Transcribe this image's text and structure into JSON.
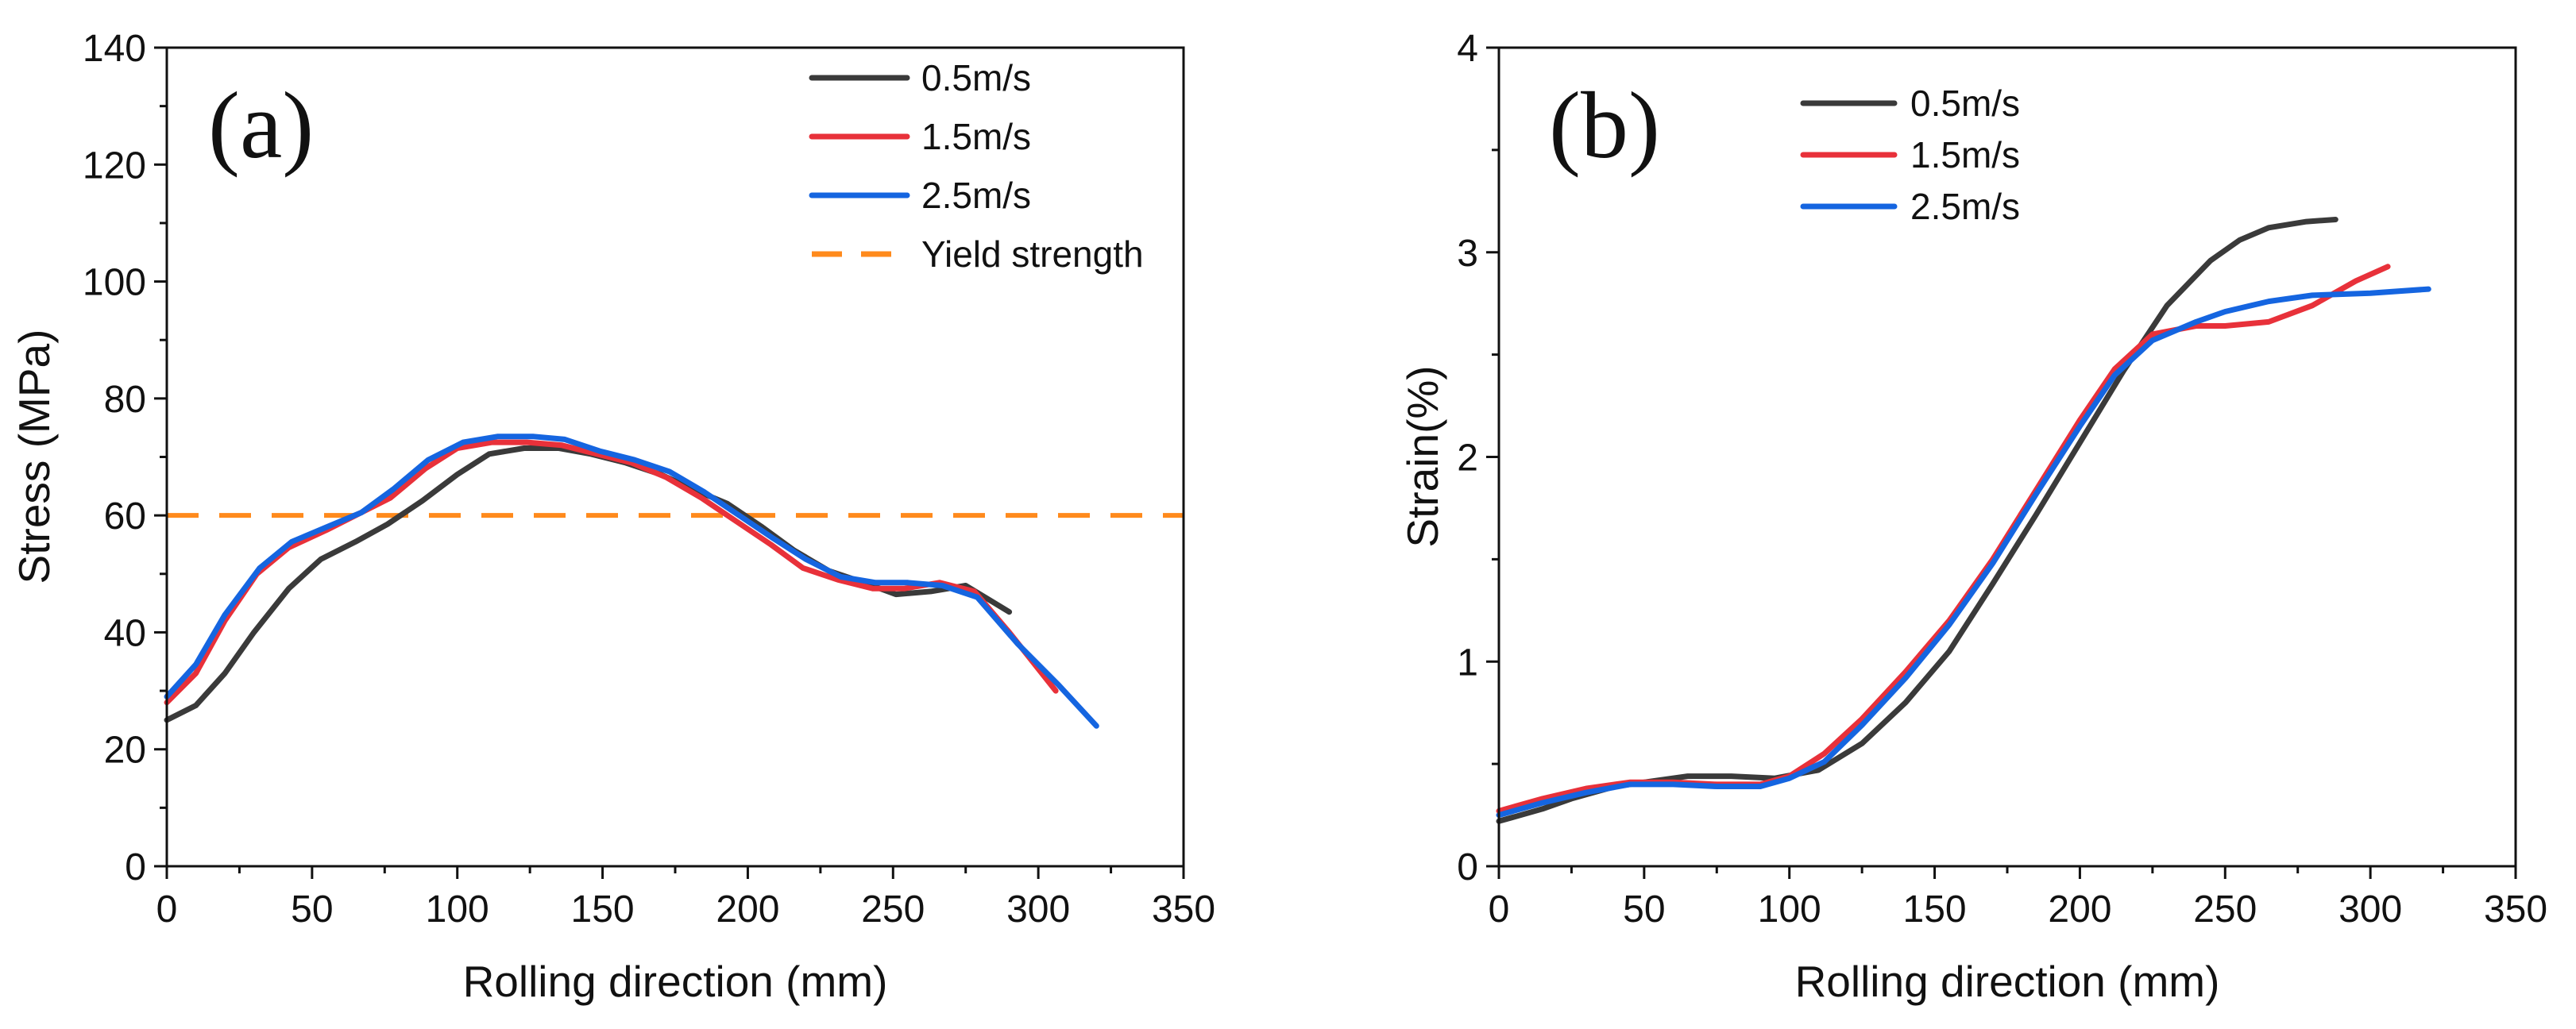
{
  "chart_data": [
    {
      "id": "a",
      "type": "line",
      "panel_label": "(a)",
      "xlabel": "Rolling direction (mm)",
      "ylabel": "Stress (MPa)",
      "xlim": [
        0,
        350
      ],
      "ylim": [
        0,
        140
      ],
      "xticks": [
        0,
        50,
        100,
        150,
        200,
        250,
        300,
        350
      ],
      "yticks": [
        0,
        20,
        40,
        60,
        80,
        100,
        120,
        140
      ],
      "legend_position": "top-right",
      "series": [
        {
          "name": "0.5m/s",
          "color": "#3a3a3a",
          "x": [
            0,
            10,
            20,
            30,
            42,
            53,
            65,
            76,
            88,
            100,
            111,
            123,
            135,
            146,
            158,
            170,
            181,
            193,
            205,
            216,
            228,
            240,
            251,
            263,
            275,
            290
          ],
          "y": [
            25,
            27.5,
            33,
            40,
            47.5,
            52.5,
            55.5,
            58.5,
            62.5,
            67,
            70.5,
            71.5,
            71.5,
            70.5,
            69,
            67,
            64.5,
            62,
            58,
            54,
            50.5,
            48.5,
            46.5,
            47,
            48,
            43.5
          ]
        },
        {
          "name": "1.5m/s",
          "color": "#e8313a",
          "x": [
            0,
            10,
            20,
            31,
            42,
            55,
            65,
            77,
            89,
            100,
            112,
            124,
            136,
            148,
            160,
            172,
            184,
            196,
            208,
            219,
            231,
            243,
            254,
            266,
            278,
            290,
            306
          ],
          "y": [
            28,
            33,
            42,
            50,
            54.5,
            57.5,
            60,
            63,
            68,
            71.5,
            72.5,
            72.5,
            72,
            70.5,
            69,
            66.5,
            63,
            59,
            55,
            51,
            49,
            47.5,
            47.5,
            48.5,
            47,
            40,
            30
          ]
        },
        {
          "name": "2.5m/s",
          "color": "#1565e0",
          "x": [
            0,
            10,
            20,
            32,
            43,
            55,
            67,
            78,
            90,
            102,
            114,
            126,
            137,
            149,
            161,
            173,
            185,
            197,
            209,
            220,
            232,
            244,
            255,
            267,
            279,
            293,
            307,
            320
          ],
          "y": [
            29,
            34.5,
            43,
            51,
            55.5,
            58,
            60.5,
            64.5,
            69.5,
            72.5,
            73.5,
            73.5,
            73,
            71,
            69.5,
            67.5,
            64,
            60,
            56,
            52.5,
            49.5,
            48.5,
            48.5,
            48,
            46,
            38,
            31,
            24
          ]
        },
        {
          "name": "Yield strength",
          "color": "#ff8a1c",
          "dashed": true,
          "x": [
            0,
            350
          ],
          "y": [
            60,
            60
          ]
        }
      ]
    },
    {
      "id": "b",
      "type": "line",
      "panel_label": "(b)",
      "xlabel": "Rolling direction (mm)",
      "ylabel": "Strain(%)",
      "xlim": [
        0,
        350
      ],
      "ylim": [
        0,
        4
      ],
      "xticks": [
        0,
        50,
        100,
        150,
        200,
        250,
        300,
        350
      ],
      "yticks": [
        0,
        1,
        2,
        3,
        4
      ],
      "legend_position": "top-left",
      "series": [
        {
          "name": "0.5m/s",
          "color": "#3a3a3a",
          "x": [
            0,
            15,
            25,
            40,
            55,
            65,
            80,
            95,
            110,
            125,
            140,
            155,
            170,
            185,
            200,
            215,
            230,
            245,
            255,
            265,
            278,
            288
          ],
          "y": [
            0.22,
            0.28,
            0.33,
            0.39,
            0.42,
            0.44,
            0.44,
            0.43,
            0.47,
            0.6,
            0.8,
            1.05,
            1.38,
            1.72,
            2.07,
            2.42,
            2.74,
            2.96,
            3.06,
            3.12,
            3.15,
            3.16
          ]
        },
        {
          "name": "1.5m/s",
          "color": "#e8313a",
          "x": [
            0,
            15,
            30,
            45,
            60,
            75,
            90,
            100,
            112,
            125,
            140,
            155,
            170,
            185,
            200,
            212,
            225,
            240,
            250,
            265,
            280,
            295,
            306
          ],
          "y": [
            0.27,
            0.33,
            0.38,
            0.41,
            0.41,
            0.4,
            0.4,
            0.44,
            0.55,
            0.72,
            0.95,
            1.2,
            1.5,
            1.84,
            2.18,
            2.43,
            2.6,
            2.64,
            2.64,
            2.66,
            2.74,
            2.86,
            2.93
          ]
        },
        {
          "name": "2.5m/s",
          "color": "#1565e0",
          "x": [
            0,
            15,
            30,
            45,
            60,
            75,
            90,
            100,
            112,
            125,
            140,
            155,
            170,
            185,
            200,
            212,
            225,
            240,
            250,
            265,
            280,
            300,
            320
          ],
          "y": [
            0.25,
            0.31,
            0.36,
            0.4,
            0.4,
            0.39,
            0.39,
            0.43,
            0.51,
            0.69,
            0.92,
            1.18,
            1.48,
            1.82,
            2.15,
            2.4,
            2.57,
            2.66,
            2.71,
            2.76,
            2.79,
            2.8,
            2.82
          ]
        }
      ]
    }
  ]
}
